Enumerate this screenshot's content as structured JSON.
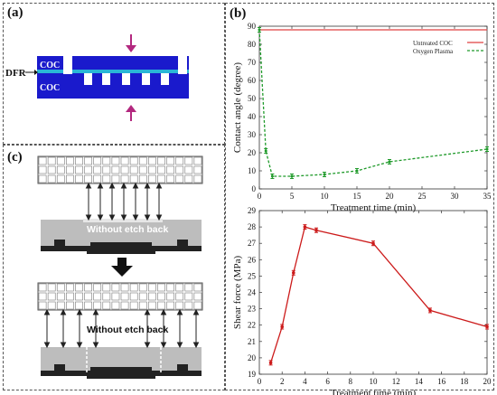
{
  "panels": {
    "a": {
      "label": "(a)",
      "top_layer_label": "COC",
      "bottom_layer_label": "COC",
      "interlayer_label": "DFR"
    },
    "b": {
      "label": "(b)"
    },
    "c": {
      "label": "(c)",
      "upper_caption": "Without etch back",
      "lower_caption": "Without etch back"
    }
  },
  "colors": {
    "coc_blue": "#1a1acc",
    "dfr_cyan": "#29b6d6",
    "arrow_magenta": "#b3287f",
    "untreated_red": "#e04040",
    "plasma_green": "#1f9a2a",
    "shear_red": "#cc1a1a"
  },
  "chart_data": [
    {
      "type": "line",
      "xlabel": "Treatment time (min)",
      "ylabel": "Contact angle (degree)",
      "xlim": [
        0,
        35
      ],
      "ylim": [
        0,
        90
      ],
      "xticks": [
        0,
        5,
        10,
        15,
        20,
        25,
        30,
        35
      ],
      "yticks": [
        0,
        10,
        20,
        30,
        40,
        50,
        60,
        70,
        80,
        90
      ],
      "legend_position": "top-right",
      "series": [
        {
          "name": "Untreated COC",
          "color": "#e04040",
          "style": "solid",
          "x": [
            0,
            35
          ],
          "y": [
            88,
            88
          ]
        },
        {
          "name": "Oxygen Plasma",
          "color": "#1f9a2a",
          "style": "dashed",
          "x": [
            0,
            1,
            2,
            5,
            10,
            15,
            20,
            35
          ],
          "y": [
            88,
            21,
            7,
            7,
            8,
            10,
            15,
            22
          ]
        }
      ]
    },
    {
      "type": "line",
      "xlabel": "Treatment time (min)",
      "ylabel": "Shear force (MPa)",
      "xlim": [
        0,
        20
      ],
      "ylim": [
        19,
        29
      ],
      "xticks": [
        0,
        2,
        4,
        6,
        8,
        10,
        12,
        14,
        16,
        18,
        20
      ],
      "yticks": [
        19,
        20,
        21,
        22,
        23,
        24,
        25,
        26,
        27,
        28,
        29
      ],
      "series": [
        {
          "color": "#cc1a1a",
          "x": [
            1,
            2,
            3,
            4,
            5,
            10,
            15,
            20
          ],
          "y": [
            19.7,
            21.9,
            25.2,
            28.0,
            27.8,
            27.0,
            22.9,
            21.9
          ]
        }
      ]
    }
  ]
}
